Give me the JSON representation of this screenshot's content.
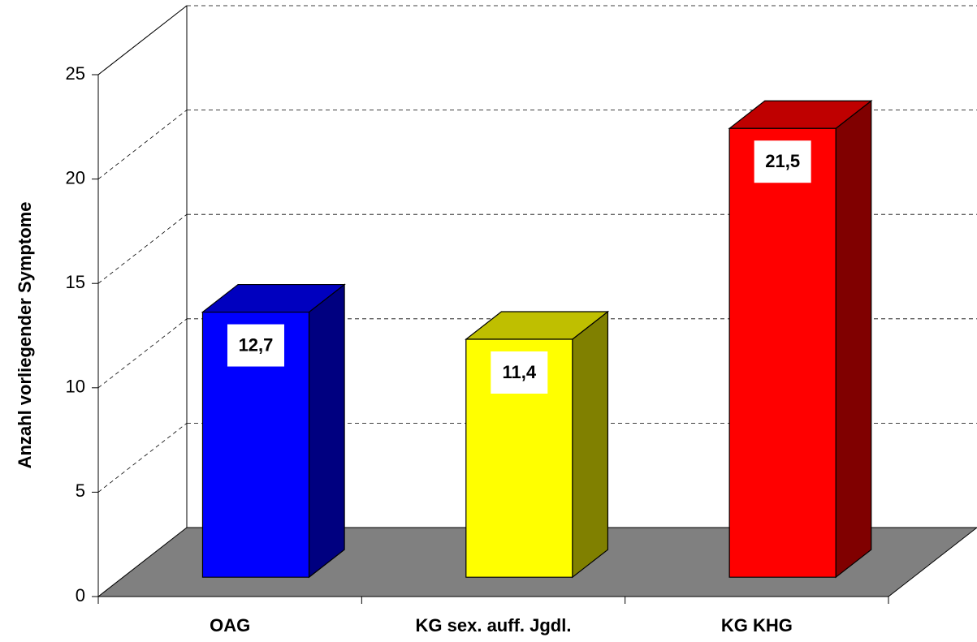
{
  "chart_data": {
    "type": "bar",
    "y_label": "Anzahl vorliegender Symptome",
    "categories": [
      "OAG",
      "KG sex. auff. Jgdl.",
      "KG KHG"
    ],
    "values": [
      12.7,
      11.4,
      21.5
    ],
    "value_labels": [
      "12,7",
      "11,4",
      "21,5"
    ],
    "colors": [
      "#0000ff",
      "#ffff00",
      "#ff0000"
    ],
    "ylim": [
      0,
      25
    ],
    "yticks": [
      0,
      5,
      10,
      15,
      20,
      25
    ],
    "grid": true
  }
}
